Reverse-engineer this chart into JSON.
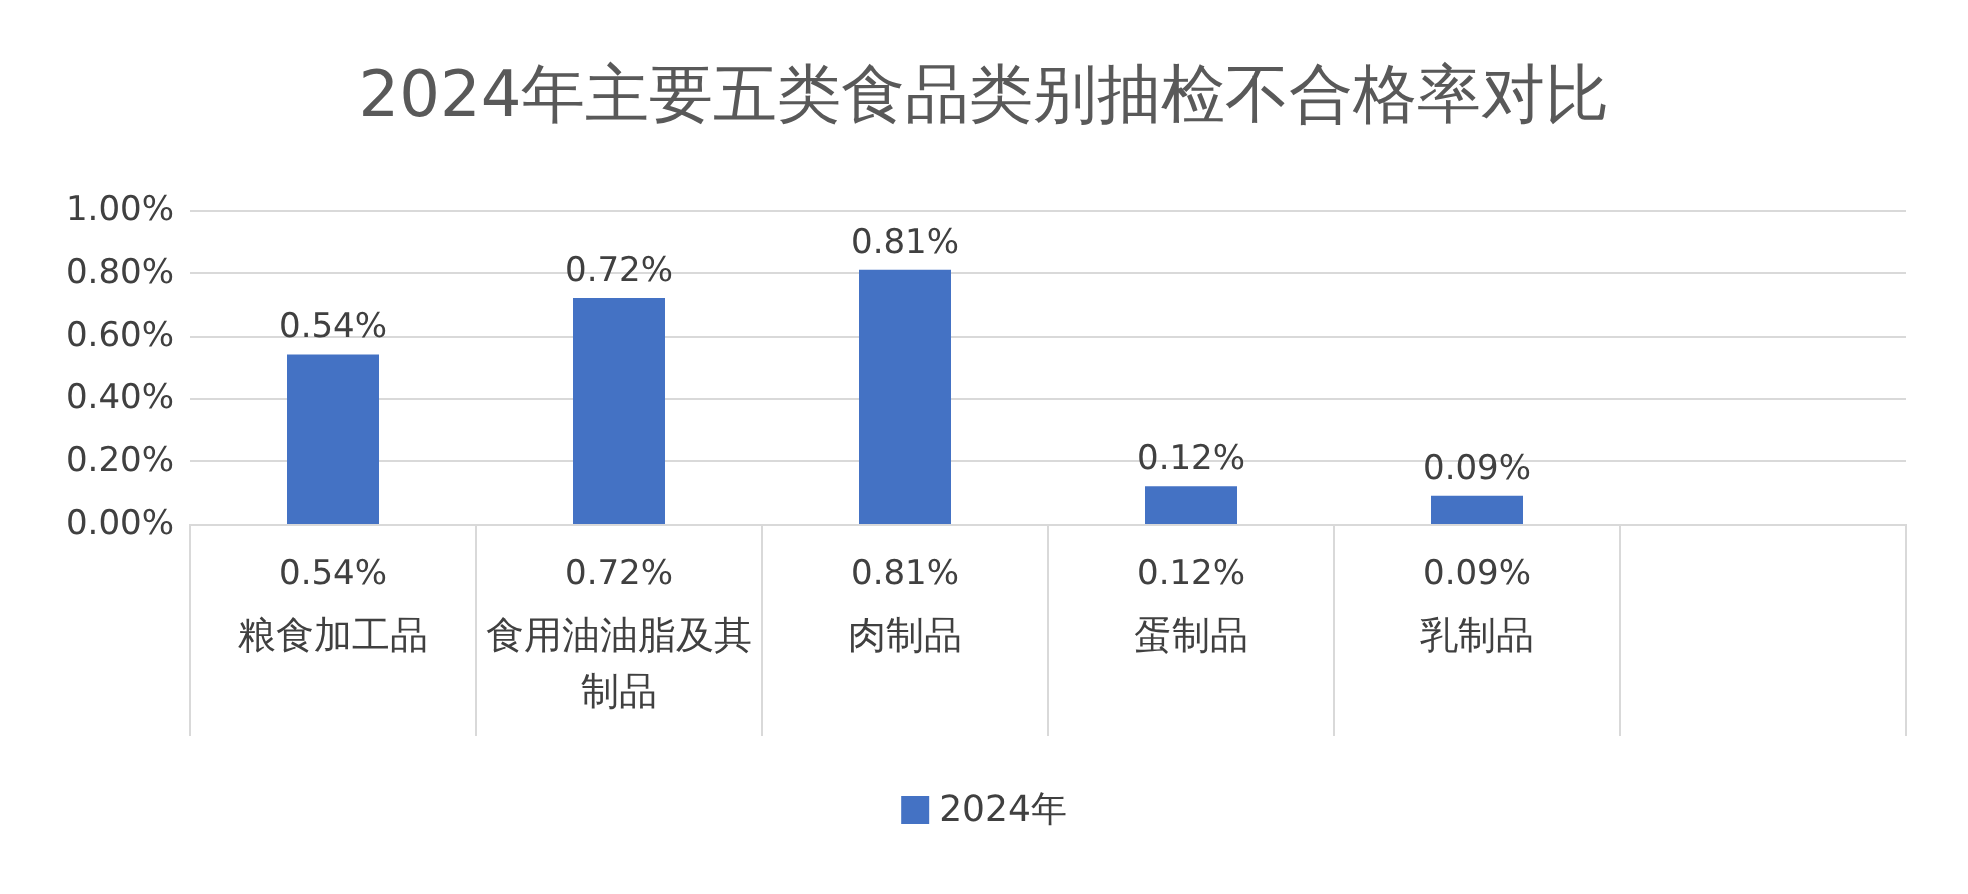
{
  "chart_data": {
    "type": "bar",
    "title": "2024年主要五类食品类别抽检不合格率对比",
    "categories": [
      "粮食加工品",
      "食用油油脂及其制品",
      "肉制品",
      "蛋制品",
      "乳制品",
      null
    ],
    "series": [
      {
        "name": "2024年",
        "color": "#4472c4",
        "values": [
          0.54,
          0.72,
          0.81,
          0.12,
          0.09,
          null
        ],
        "value_labels": [
          "0.54%",
          "0.72%",
          "0.81%",
          "0.12%",
          "0.09%",
          null
        ]
      }
    ],
    "ylim": [
      0,
      1
    ],
    "yticks": [
      {
        "value": 0,
        "label": "0.00%"
      },
      {
        "value": 0.2,
        "label": "0.20%"
      },
      {
        "value": 0.4,
        "label": "0.40%"
      },
      {
        "value": 0.6,
        "label": "0.60%"
      },
      {
        "value": 0.8,
        "label": "0.80%"
      },
      {
        "value": 1,
        "label": "1.00%"
      }
    ],
    "grid": "y",
    "legend": "bottom"
  }
}
